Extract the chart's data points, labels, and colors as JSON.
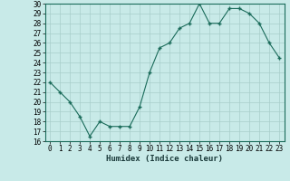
{
  "x": [
    0,
    1,
    2,
    3,
    4,
    5,
    6,
    7,
    8,
    9,
    10,
    11,
    12,
    13,
    14,
    15,
    16,
    17,
    18,
    19,
    20,
    21,
    22,
    23
  ],
  "y": [
    22,
    21,
    20,
    18.5,
    16.5,
    18,
    17.5,
    17.5,
    17.5,
    19.5,
    23,
    25.5,
    26,
    27.5,
    28,
    30,
    28,
    28,
    29.5,
    29.5,
    29,
    28,
    26,
    24.5
  ],
  "line_color": "#1a6b5a",
  "marker_color": "#1a6b5a",
  "bg_color": "#c8eae8",
  "grid_color": "#a8ceca",
  "xlabel": "Humidex (Indice chaleur)",
  "ylim": [
    16,
    30
  ],
  "xlim": [
    -0.5,
    23.5
  ],
  "yticks": [
    16,
    17,
    18,
    19,
    20,
    21,
    22,
    23,
    24,
    25,
    26,
    27,
    28,
    29,
    30
  ],
  "xticks": [
    0,
    1,
    2,
    3,
    4,
    5,
    6,
    7,
    8,
    9,
    10,
    11,
    12,
    13,
    14,
    15,
    16,
    17,
    18,
    19,
    20,
    21,
    22,
    23
  ],
  "xlabel_fontsize": 6.5,
  "tick_fontsize": 5.5,
  "spine_color": "#1a6b5a"
}
